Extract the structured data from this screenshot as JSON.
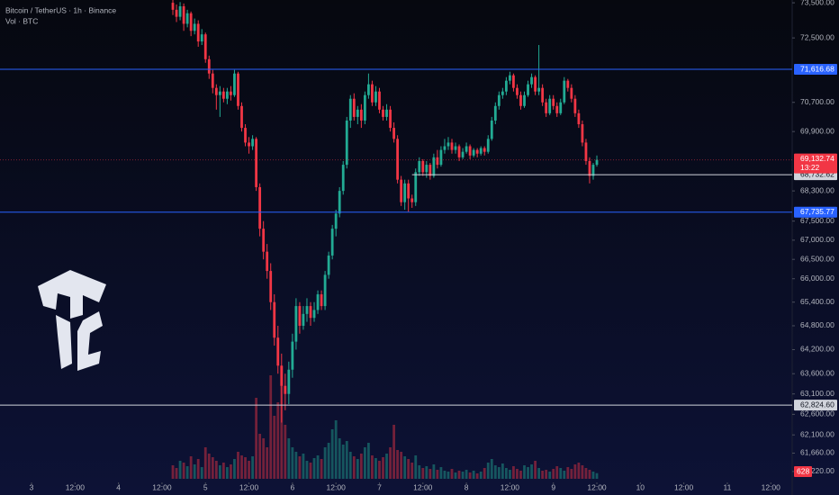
{
  "chart_data": {
    "type": "candlestick",
    "title": "Bitcoin / TetherUS · 1h · Binance",
    "subtitle": "Vol · BTC",
    "up_color": "#22ab94",
    "down_color": "#f23645",
    "log_scale": true,
    "ylim": [
      60960,
      73580
    ],
    "yticks": [
      {
        "value": 73500,
        "label": "73,500.00"
      },
      {
        "value": 72500,
        "label": "72,500.00"
      },
      {
        "value": 70700,
        "label": "70,700.00"
      },
      {
        "value": 69900,
        "label": "69,900.00"
      },
      {
        "value": 68300,
        "label": "68,300.00"
      },
      {
        "value": 67500,
        "label": "67,500.00"
      },
      {
        "value": 67000,
        "label": "67,000.00"
      },
      {
        "value": 66500,
        "label": "66,500.00"
      },
      {
        "value": 66000,
        "label": "66,000.00"
      },
      {
        "value": 65400,
        "label": "65,400.00"
      },
      {
        "value": 64800,
        "label": "64,800.00"
      },
      {
        "value": 64200,
        "label": "64,200.00"
      },
      {
        "value": 63600,
        "label": "63,600.00"
      },
      {
        "value": 63100,
        "label": "63,100.00"
      },
      {
        "value": 62600,
        "label": "62,600.00"
      },
      {
        "value": 62100,
        "label": "62,100.00"
      },
      {
        "value": 61660,
        "label": "61,660.00"
      },
      {
        "value": 61220,
        "label": "61,220.00"
      }
    ],
    "xlim": [
      -8.7,
      209.9
    ],
    "xticks": [
      {
        "value": 0,
        "label": "3"
      },
      {
        "value": 12,
        "label": "12:00"
      },
      {
        "value": 24,
        "label": "4"
      },
      {
        "value": 36,
        "label": "12:00"
      },
      {
        "value": 48,
        "label": "5"
      },
      {
        "value": 60,
        "label": "12:00"
      },
      {
        "value": 72,
        "label": "6"
      },
      {
        "value": 84,
        "label": "12:00"
      },
      {
        "value": 96,
        "label": "7"
      },
      {
        "value": 108,
        "label": "12:00"
      },
      {
        "value": 120,
        "label": "8"
      },
      {
        "value": 132,
        "label": "12:00"
      },
      {
        "value": 144,
        "label": "9"
      },
      {
        "value": 156,
        "label": "12:00"
      },
      {
        "value": 168,
        "label": "10"
      },
      {
        "value": 180,
        "label": "12:00"
      },
      {
        "value": 192,
        "label": "11"
      },
      {
        "value": 204,
        "label": "12:00"
      }
    ],
    "levels": [
      {
        "value": 71616.68,
        "label": "71,616.68",
        "color": "#2962ff"
      },
      {
        "value": 67735.77,
        "label": "67,735.77",
        "color": "#2962ff"
      },
      {
        "value": 68732.62,
        "label": "68,732.62",
        "color": "#d1d4dc",
        "from": 105
      },
      {
        "value": 62824.6,
        "label": "62,824.60",
        "color": "#d1d4dc"
      }
    ],
    "last_price": {
      "value": 69132.74,
      "label": "69,132.74"
    },
    "countdown": "13:22",
    "volume_ylim": [
      0,
      13000
    ],
    "x": [
      39,
      40,
      41,
      42,
      43,
      44,
      45,
      46,
      47,
      48,
      49,
      50,
      51,
      52,
      53,
      54,
      55,
      56,
      57,
      58,
      59,
      60,
      61,
      62,
      63,
      64,
      65,
      66,
      67,
      68,
      69,
      70,
      71,
      72,
      73,
      74,
      75,
      76,
      77,
      78,
      79,
      80,
      81,
      82,
      83,
      84,
      85,
      86,
      87,
      88,
      89,
      90,
      91,
      92,
      93,
      94,
      95,
      96,
      97,
      98,
      99,
      100,
      101,
      102,
      103,
      104,
      105,
      106,
      107,
      108,
      109,
      110,
      111,
      112,
      113,
      114,
      115,
      116,
      117,
      118,
      119,
      120,
      121,
      122,
      123,
      124,
      125,
      126,
      127,
      128,
      129,
      130,
      131,
      132,
      133,
      134,
      135,
      136,
      137,
      138,
      139,
      140,
      141,
      142,
      143,
      144,
      145,
      146,
      147,
      148,
      149,
      150,
      151,
      152,
      153,
      154,
      155,
      156
    ],
    "ohlc": [
      [
        73500,
        73620,
        73150,
        73300
      ],
      [
        73300,
        73450,
        72950,
        73100
      ],
      [
        73100,
        73520,
        73000,
        73400
      ],
      [
        73400,
        73480,
        72700,
        72900
      ],
      [
        72900,
        73300,
        72800,
        73200
      ],
      [
        73200,
        73250,
        72550,
        72700
      ],
      [
        72700,
        73050,
        72600,
        72900
      ],
      [
        72900,
        73000,
        72250,
        72400
      ],
      [
        72400,
        72750,
        72300,
        72600
      ],
      [
        72600,
        72650,
        71800,
        71900
      ],
      [
        71900,
        72000,
        71350,
        71500
      ],
      [
        71500,
        71600,
        70950,
        71100
      ],
      [
        71100,
        71200,
        70500,
        70900
      ],
      [
        70900,
        71150,
        70300,
        71000
      ],
      [
        71000,
        71100,
        70700,
        70800
      ],
      [
        70800,
        71100,
        70650,
        71000
      ],
      [
        71000,
        71150,
        70750,
        70900
      ],
      [
        70900,
        71600,
        70850,
        71500
      ],
      [
        71500,
        71550,
        70500,
        70600
      ],
      [
        70600,
        70700,
        69900,
        70000
      ],
      [
        70000,
        70100,
        69500,
        69600
      ],
      [
        69600,
        69750,
        69300,
        69500
      ],
      [
        69500,
        69800,
        69400,
        69700
      ],
      [
        69700,
        69750,
        68300,
        68400
      ],
      [
        68400,
        68500,
        67100,
        67300
      ],
      [
        67300,
        67500,
        66500,
        66700
      ],
      [
        66700,
        66900,
        66000,
        66200
      ],
      [
        66200,
        66400,
        65200,
        65400
      ],
      [
        65400,
        65600,
        64300,
        64500
      ],
      [
        64500,
        64800,
        63600,
        63800
      ],
      [
        63800,
        64100,
        62400,
        63300
      ],
      [
        63300,
        63600,
        62700,
        63100
      ],
      [
        63100,
        63900,
        62850,
        63700
      ],
      [
        63700,
        64600,
        63500,
        64400
      ],
      [
        64400,
        65500,
        64200,
        65300
      ],
      [
        65300,
        65400,
        64600,
        64800
      ],
      [
        64800,
        65300,
        64700,
        65100
      ],
      [
        65100,
        65500,
        64900,
        65300
      ],
      [
        65300,
        65400,
        64800,
        65000
      ],
      [
        65000,
        65400,
        64900,
        65200
      ],
      [
        65200,
        65700,
        65100,
        65600
      ],
      [
        65600,
        65700,
        65200,
        65300
      ],
      [
        65300,
        66200,
        65200,
        66100
      ],
      [
        66100,
        66700,
        66000,
        66600
      ],
      [
        66600,
        67400,
        66500,
        67300
      ],
      [
        67300,
        67800,
        67100,
        67700
      ],
      [
        67700,
        68400,
        67600,
        68300
      ],
      [
        68300,
        69100,
        68200,
        69000
      ],
      [
        69000,
        70300,
        68900,
        70200
      ],
      [
        70200,
        70900,
        70000,
        70800
      ],
      [
        70800,
        70950,
        70200,
        70300
      ],
      [
        70300,
        70600,
        70100,
        70500
      ],
      [
        70500,
        70650,
        70000,
        70200
      ],
      [
        70200,
        71000,
        70100,
        70900
      ],
      [
        70900,
        71500,
        70800,
        71200
      ],
      [
        71200,
        71300,
        70600,
        70700
      ],
      [
        70700,
        71150,
        70600,
        71000
      ],
      [
        71000,
        71100,
        70400,
        70500
      ],
      [
        70500,
        70600,
        70200,
        70300
      ],
      [
        70300,
        70650,
        70200,
        70500
      ],
      [
        70500,
        70600,
        69900,
        70000
      ],
      [
        70000,
        70150,
        69600,
        69700
      ],
      [
        69700,
        69800,
        68500,
        68600
      ],
      [
        68600,
        68700,
        67900,
        68000
      ],
      [
        68000,
        68600,
        67800,
        68500
      ],
      [
        68500,
        68600,
        67750,
        68100
      ],
      [
        68100,
        68200,
        67850,
        68000
      ],
      [
        68000,
        68900,
        67900,
        68800
      ],
      [
        68800,
        69200,
        68700,
        69100
      ],
      [
        69100,
        69150,
        68700,
        68800
      ],
      [
        68800,
        69100,
        68650,
        69000
      ],
      [
        69000,
        69050,
        68600,
        68700
      ],
      [
        68700,
        69300,
        68650,
        69200
      ],
      [
        69200,
        69400,
        68900,
        69000
      ],
      [
        69000,
        69500,
        68950,
        69400
      ],
      [
        69400,
        69700,
        69300,
        69500
      ],
      [
        69500,
        69750,
        69400,
        69600
      ],
      [
        69600,
        69700,
        69300,
        69400
      ],
      [
        69400,
        69600,
        69300,
        69500
      ],
      [
        69500,
        69550,
        69100,
        69200
      ],
      [
        69200,
        69450,
        69150,
        69350
      ],
      [
        69350,
        69600,
        69300,
        69500
      ],
      [
        69500,
        69550,
        69150,
        69250
      ],
      [
        69250,
        69450,
        69200,
        69400
      ],
      [
        69400,
        69450,
        69200,
        69300
      ],
      [
        69300,
        69500,
        69250,
        69450
      ],
      [
        69450,
        69500,
        69250,
        69350
      ],
      [
        69350,
        69800,
        69300,
        69700
      ],
      [
        69700,
        70300,
        69650,
        70200
      ],
      [
        70200,
        70700,
        70100,
        70600
      ],
      [
        70600,
        71000,
        70500,
        70900
      ],
      [
        70900,
        71100,
        70800,
        71000
      ],
      [
        71000,
        71400,
        70900,
        71300
      ],
      [
        71300,
        71550,
        71200,
        71450
      ],
      [
        71450,
        71500,
        71000,
        71100
      ],
      [
        71100,
        71200,
        70800,
        70900
      ],
      [
        70900,
        71000,
        70500,
        70600
      ],
      [
        70600,
        71000,
        70550,
        70900
      ],
      [
        70900,
        71300,
        70850,
        71200
      ],
      [
        71200,
        71500,
        71100,
        71400
      ],
      [
        71400,
        71450,
        70900,
        71000
      ],
      [
        71000,
        72300,
        70900,
        71100
      ],
      [
        71100,
        71200,
        70600,
        70700
      ],
      [
        70700,
        70800,
        70300,
        70400
      ],
      [
        70400,
        70900,
        70350,
        70800
      ],
      [
        70800,
        70900,
        70500,
        70600
      ],
      [
        70600,
        70700,
        70300,
        70400
      ],
      [
        70400,
        70800,
        70350,
        70700
      ],
      [
        70700,
        71400,
        70650,
        71300
      ],
      [
        71300,
        71350,
        71000,
        71100
      ],
      [
        71100,
        71200,
        70700,
        70800
      ],
      [
        70800,
        70900,
        70300,
        70400
      ],
      [
        70400,
        70500,
        70000,
        70100
      ],
      [
        70100,
        70200,
        69500,
        69600
      ],
      [
        69600,
        69700,
        69000,
        69100
      ],
      [
        69100,
        69200,
        68500,
        68700
      ],
      [
        68700,
        69050,
        68600,
        69000
      ],
      [
        69000,
        69250,
        68950,
        69132.74
      ]
    ],
    "volumes": [
      1500,
      1200,
      2000,
      1800,
      1400,
      2500,
      1600,
      2200,
      1300,
      3500,
      2800,
      2400,
      2000,
      1500,
      1800,
      1300,
      1600,
      2200,
      3000,
      2600,
      2400,
      2000,
      2500,
      9000,
      5000,
      4500,
      3500,
      11500,
      7000,
      8500,
      12500,
      6000,
      4500,
      3500,
      3000,
      2500,
      2800,
      2000,
      1800,
      2300,
      2600,
      2200,
      3500,
      4000,
      5500,
      6500,
      4500,
      3800,
      4200,
      3000,
      2500,
      2200,
      2800,
      3500,
      4000,
      2600,
      2300,
      2000,
      2400,
      2800,
      3500,
      6000,
      3200,
      3000,
      2500,
      2200,
      1800,
      2600,
      1500,
      1200,
      1400,
      1100,
      1600,
      1000,
      1300,
      900,
      800,
      1100,
      700,
      900,
      800,
      1000,
      700,
      900,
      600,
      800,
      1200,
      1800,
      2200,
      1500,
      1300,
      1700,
      1200,
      1000,
      1400,
      1100,
      900,
      1500,
      1300,
      1600,
      2000,
      1200,
      900,
      1000,
      800,
      1100,
      1400,
      1200,
      900,
      1300,
      1100,
      1600,
      1800,
      1500,
      1200,
      1000,
      800,
      628
    ]
  }
}
